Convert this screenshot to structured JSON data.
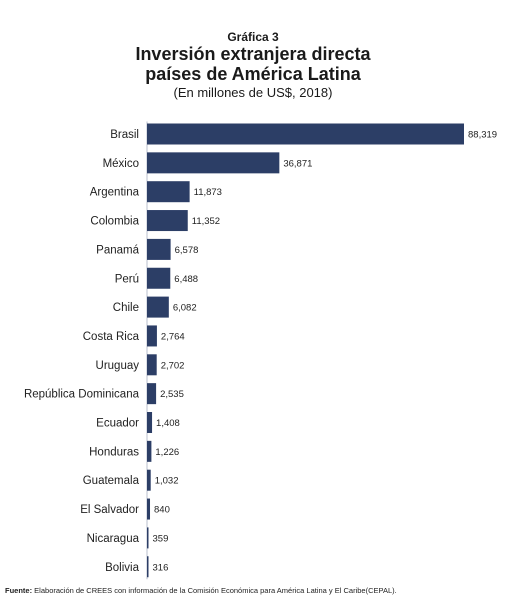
{
  "header": {
    "kicker": "Gráfica 3",
    "title_line1": "Inversión extranjera directa",
    "title_line2": "países de América Latina",
    "subtitle": "(En millones de US$, 2018)"
  },
  "chart_data": {
    "type": "bar",
    "orientation": "horizontal",
    "title": "Inversión extranjera directa países de América Latina",
    "subtitle": "(En millones de US$, 2018)",
    "xlabel": "",
    "ylabel": "",
    "xlim": [
      0,
      88319
    ],
    "grid": false,
    "legend": "none",
    "bar_color": "#2c3e66",
    "categories": [
      "Brasil",
      "México",
      "Argentina",
      "Colombia",
      "Panamá",
      "Perú",
      "Chile",
      "Costa Rica",
      "Uruguay",
      "República Dominicana",
      "Ecuador",
      "Honduras",
      "Guatemala",
      "El Salvador",
      "Nicaragua",
      "Bolivia"
    ],
    "values": [
      88319,
      36871,
      11873,
      11352,
      6578,
      6488,
      6082,
      2764,
      2702,
      2535,
      1408,
      1226,
      1032,
      840,
      359,
      316
    ],
    "value_labels": [
      "88,319",
      "36,871",
      "11,873",
      "11,352",
      "6,578",
      "6,488",
      "6,082",
      "2,764",
      "2,702",
      "2,535",
      "1,408",
      "1,226",
      "1,032",
      "840",
      "359",
      "316"
    ]
  },
  "footer": {
    "label": "Fuente:",
    "text": " Elaboración de CREES con información de la Comisión Económica para América Latina y El Caribe(CEPAL)."
  }
}
